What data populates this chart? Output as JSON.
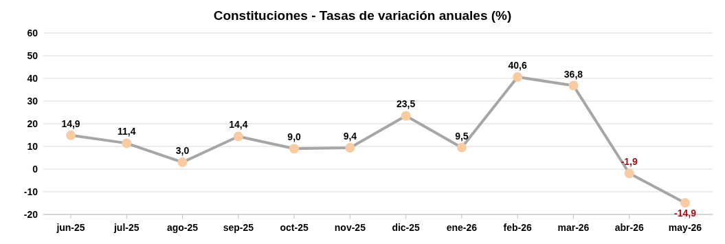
{
  "chart_data": {
    "type": "line",
    "title": "Constituciones - Tasas de variación anuales (%)",
    "categories": [
      "jun-25",
      "jul-25",
      "ago-25",
      "sep-25",
      "oct-25",
      "nov-25",
      "dic-25",
      "ene-26",
      "feb-26",
      "mar-26",
      "abr-26",
      "may-26"
    ],
    "series": [
      {
        "color": "#a6a6a6",
        "values": [
          14.9,
          11.4,
          3.0,
          14.4,
          9.0,
          9.4,
          23.5,
          9.5,
          40.6,
          36.8,
          -1.9,
          -14.9
        ],
        "value_labels": [
          "14,9",
          "11,4",
          "3,0",
          "14,4",
          "9,0",
          "9,4",
          "23,5",
          "9,5",
          "40,6",
          "36,8",
          "-1,9",
          "-14,9"
        ]
      }
    ],
    "ylim": [
      -20,
      60
    ],
    "yticks": [
      -20,
      -10,
      0,
      10,
      20,
      30,
      40,
      50,
      60
    ],
    "grid": "y",
    "marker": "circle",
    "line_style": "solid"
  }
}
